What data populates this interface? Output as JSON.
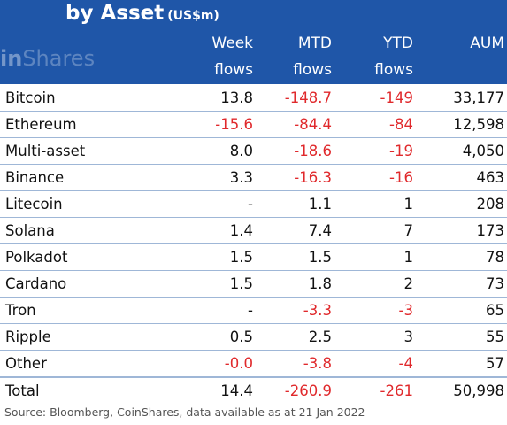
{
  "header": {
    "title": "by Asset",
    "unit": "(US$m)",
    "logo_prefix": "in",
    "logo_suffix": "Shares"
  },
  "columns": [
    {
      "line1": "Week",
      "line2": "flows"
    },
    {
      "line1": "MTD",
      "line2": "flows"
    },
    {
      "line1": "YTD",
      "line2": "flows"
    },
    {
      "line1": "",
      "line2": "AUM"
    }
  ],
  "rows": [
    {
      "asset": "Bitcoin",
      "week": "13.8",
      "mtd": "-148.7",
      "ytd": "-149",
      "aum": "33,177"
    },
    {
      "asset": "Ethereum",
      "week": "-15.6",
      "mtd": "-84.4",
      "ytd": "-84",
      "aum": "12,598"
    },
    {
      "asset": "Multi-asset",
      "week": "8.0",
      "mtd": "-18.6",
      "ytd": "-19",
      "aum": "4,050"
    },
    {
      "asset": "Binance",
      "week": "3.3",
      "mtd": "-16.3",
      "ytd": "-16",
      "aum": "463"
    },
    {
      "asset": "Litecoin",
      "week": "-",
      "mtd": "1.1",
      "ytd": "1",
      "aum": "208"
    },
    {
      "asset": "Solana",
      "week": "1.4",
      "mtd": "7.4",
      "ytd": "7",
      "aum": "173"
    },
    {
      "asset": "Polkadot",
      "week": "1.5",
      "mtd": "1.5",
      "ytd": "1",
      "aum": "78"
    },
    {
      "asset": "Cardano",
      "week": "1.5",
      "mtd": "1.8",
      "ytd": "2",
      "aum": "73"
    },
    {
      "asset": "Tron",
      "week": "-",
      "mtd": "-3.3",
      "ytd": "-3",
      "aum": "65"
    },
    {
      "asset": "Ripple",
      "week": "0.5",
      "mtd": "2.5",
      "ytd": "3",
      "aum": "55"
    },
    {
      "asset": "Other",
      "week": "-0.0",
      "mtd": "-3.8",
      "ytd": "-4",
      "aum": "57"
    }
  ],
  "total": {
    "asset": "Total",
    "week": "14.4",
    "mtd": "-260.9",
    "ytd": "-261",
    "aum": "50,998"
  },
  "source": "Source: Bloomberg, CoinShares, data available as at 21 Jan 2022",
  "colors": {
    "header_bg": "#1f56a8",
    "negative": "#e0292c",
    "rule": "#9fb7d7"
  }
}
